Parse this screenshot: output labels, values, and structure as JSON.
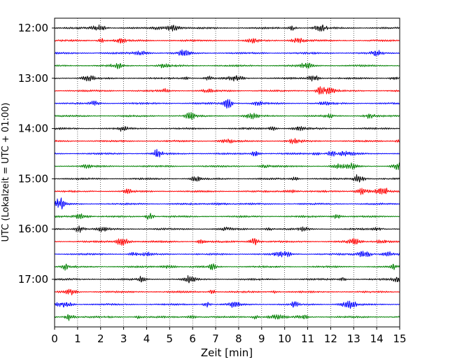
{
  "chart_data": {
    "type": "line",
    "title": "",
    "xlabel": "Zeit  [min]",
    "ylabel": "UTC (Lokalzeit = UTC + 01:00)",
    "xlim": [
      0,
      15
    ],
    "x_ticks": [
      "0",
      "1",
      "2",
      "3",
      "4",
      "5",
      "6",
      "7",
      "8",
      "9",
      "10",
      "11",
      "12",
      "13",
      "14",
      "15"
    ],
    "y_ticks": [
      "12:00",
      "13:00",
      "14:00",
      "15:00",
      "16:00",
      "17:00"
    ],
    "trace_start_times": [
      "12:00",
      "12:15",
      "12:30",
      "12:45",
      "13:00",
      "13:15",
      "13:30",
      "13:45",
      "14:00",
      "14:15",
      "14:30",
      "14:45",
      "15:00",
      "15:15",
      "15:30",
      "15:45",
      "16:00",
      "16:15",
      "16:30",
      "16:45",
      "17:00",
      "17:15",
      "17:30",
      "17:45"
    ],
    "trace_minutes": 15,
    "trace_colors": [
      "#000000",
      "#ff0000",
      "#0000ff",
      "#008000"
    ],
    "vertical_grid": "dotted",
    "legend": "none"
  }
}
